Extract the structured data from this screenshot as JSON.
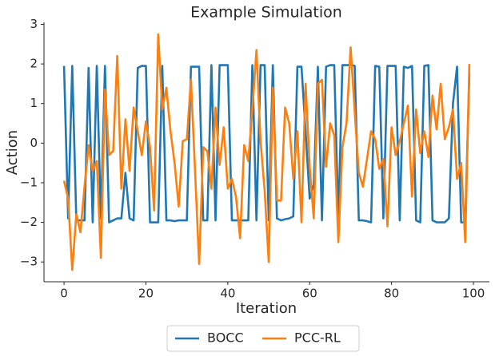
{
  "chart_data": {
    "type": "line",
    "title": "Example Simulation",
    "x_label": "Iteration",
    "y_label": "Action",
    "x": [
      0,
      1,
      2,
      3,
      4,
      5,
      6,
      7,
      8,
      9,
      10,
      11,
      12,
      13,
      14,
      15,
      16,
      17,
      18,
      19,
      20,
      21,
      22,
      23,
      24,
      25,
      26,
      27,
      28,
      29,
      30,
      31,
      32,
      33,
      34,
      35,
      36,
      37,
      38,
      39,
      40,
      41,
      42,
      43,
      44,
      45,
      46,
      47,
      48,
      49,
      50,
      51,
      52,
      53,
      54,
      55,
      56,
      57,
      58,
      59,
      60,
      61,
      62,
      63,
      64,
      65,
      66,
      67,
      68,
      69,
      70,
      71,
      72,
      73,
      74,
      75,
      76,
      77,
      78,
      79,
      80,
      81,
      82,
      83,
      84,
      85,
      86,
      87,
      88,
      89,
      90,
      91,
      92,
      93,
      94,
      95,
      96,
      97,
      98,
      99
    ],
    "series": [
      {
        "name": "BOCC",
        "color": "#1f77b4",
        "values": [
          1.95,
          -1.9,
          1.95,
          -1.95,
          -1.95,
          -1.95,
          1.9,
          -2.0,
          1.95,
          -1.9,
          1.95,
          -2.0,
          -1.95,
          -1.9,
          -1.9,
          -0.75,
          -1.9,
          -1.95,
          1.9,
          1.95,
          1.95,
          -2.0,
          -2.0,
          -2.0,
          1.95,
          -1.95,
          -1.95,
          -1.97,
          -1.95,
          -1.95,
          -1.95,
          1.93,
          1.93,
          1.93,
          -1.95,
          -1.95,
          1.97,
          -1.95,
          1.97,
          1.97,
          1.97,
          -1.95,
          -1.95,
          -1.95,
          -1.95,
          -1.95,
          1.97,
          -1.95,
          1.97,
          1.97,
          -1.95,
          1.97,
          -1.9,
          -1.95,
          -1.92,
          -1.9,
          -1.85,
          1.93,
          1.93,
          0.3,
          -1.4,
          -1.05,
          1.93,
          -1.95,
          1.93,
          1.97,
          1.97,
          -1.95,
          1.97,
          1.97,
          1.97,
          1.95,
          -1.95,
          -1.95,
          -1.97,
          -2.0,
          1.95,
          1.93,
          -1.9,
          1.95,
          1.95,
          1.95,
          -1.95,
          1.93,
          1.9,
          1.95,
          -1.95,
          -2.0,
          1.95,
          1.97,
          -1.95,
          -2.0,
          -2.0,
          -2.0,
          -1.9,
          1.0,
          1.93,
          -2.0,
          -2.0,
          1.75
        ]
      },
      {
        "name": "PCC-RL",
        "color": "#ff7f0e",
        "values": [
          -0.95,
          -1.4,
          -3.2,
          -1.8,
          -2.25,
          -1.1,
          -0.05,
          -0.7,
          -0.45,
          -2.9,
          1.35,
          -0.3,
          -0.2,
          2.2,
          -1.15,
          0.6,
          -0.7,
          0.9,
          0.3,
          -0.3,
          0.55,
          -0.1,
          -1.7,
          2.75,
          0.85,
          1.4,
          0.3,
          -0.5,
          -1.6,
          0.05,
          0.1,
          1.6,
          -0.7,
          -3.05,
          -0.1,
          -0.2,
          -1.15,
          0.9,
          -0.55,
          0.4,
          -1.15,
          -0.9,
          -1.35,
          -2.4,
          -0.05,
          -0.45,
          0.85,
          2.35,
          0.05,
          -1.2,
          -3.0,
          1.4,
          -1.45,
          -1.45,
          0.9,
          0.5,
          -0.9,
          0.3,
          -2.0,
          1.5,
          -0.6,
          -1.9,
          1.5,
          1.6,
          -0.6,
          0.5,
          0.2,
          -2.5,
          -0.1,
          0.5,
          2.42,
          0.8,
          -0.75,
          -1.1,
          -0.4,
          0.3,
          0.1,
          -0.65,
          -0.4,
          -2.1,
          0.4,
          -0.3,
          0.05,
          0.5,
          0.95,
          -1.35,
          0.85,
          -0.25,
          0.3,
          -0.35,
          1.2,
          0.35,
          1.5,
          0.1,
          0.4,
          0.85,
          -0.9,
          -0.5,
          -2.5,
          2.0
        ]
      }
    ],
    "xlim": [
      -4.9,
      103.9
    ],
    "ylim": [
      -3.5,
      3.05
    ],
    "xticks": [
      0,
      20,
      40,
      60,
      80,
      100
    ],
    "yticks": [
      {
        "value": -3,
        "label": "−3"
      },
      {
        "value": -2,
        "label": "−2"
      },
      {
        "value": -1,
        "label": "−1"
      },
      0,
      1,
      2,
      3
    ],
    "legend": "bottom"
  }
}
